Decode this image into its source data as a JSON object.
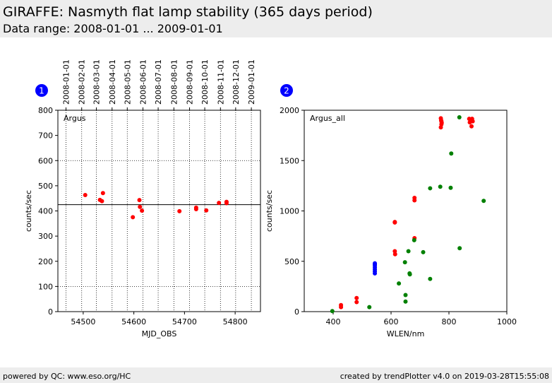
{
  "header": {
    "title": "GIRAFFE: Nasmyth flat lamp stability (365 days period)",
    "subtitle": "Data range: 2008-01-01 ... 2009-01-01"
  },
  "footer": {
    "left": "powered by QC: www.eso.org/HC",
    "right": "created by trendPlotter v4.0 on 2019-03-28T15:55:08"
  },
  "colors": {
    "red": "#ff0000",
    "green": "#008000",
    "blue": "#0000ff",
    "badge": "#0000ff",
    "header_bg": "#ededed"
  },
  "chart_data": [
    {
      "type": "scatter",
      "badge": "1",
      "label": "Argus",
      "xlabel": "MJD_OBS",
      "ylabel": "counts/sec",
      "xlim": [
        54450,
        54850
      ],
      "ylim": [
        0,
        800
      ],
      "xticks": [
        54500,
        54600,
        54700,
        54800
      ],
      "yticks": [
        0,
        100,
        200,
        300,
        400,
        500,
        600,
        700,
        800
      ],
      "reference_line": 425,
      "grid": "dotted",
      "date_axis": {
        "labels": [
          "2008-01-01",
          "2008-02-01",
          "2008-03-01",
          "2008-04-01",
          "2008-05-01",
          "2008-06-01",
          "2008-07-01",
          "2008-08-01",
          "2008-09-01",
          "2008-10-01",
          "2008-11-01",
          "2008-12-01",
          "2009-01-01"
        ],
        "mjd": [
          54466,
          54497,
          54526,
          54557,
          54587,
          54618,
          54648,
          54679,
          54710,
          54740,
          54771,
          54801,
          54832
        ]
      },
      "series": [
        {
          "color": "red",
          "x": [
            54504,
            54533,
            54537,
            54539,
            54598,
            54611,
            54612,
            54616,
            54690,
            54723,
            54723,
            54743,
            54768,
            54783,
            54783
          ],
          "y": [
            463,
            444,
            439,
            471,
            375,
            443,
            416,
            401,
            399,
            413,
            407,
            402,
            432,
            436,
            431
          ]
        }
      ]
    },
    {
      "type": "scatter",
      "badge": "2",
      "label": "Argus_all",
      "xlabel": "WLEN/nm",
      "ylabel": "counts/sec",
      "xlim": [
        300,
        1000
      ],
      "ylim": [
        0,
        2000
      ],
      "xticks": [
        400,
        600,
        800,
        1000
      ],
      "yticks": [
        0,
        500,
        1000,
        1500,
        2000
      ],
      "grid": "off",
      "series": [
        {
          "color": "red",
          "x": [
            427,
            427,
            481,
            481,
            613,
            613,
            613,
            614,
            681,
            681,
            681,
            772,
            773,
            774,
            775,
            772,
            774,
            870,
            872,
            878,
            880,
            882
          ],
          "y": [
            65,
            45,
            135,
            95,
            890,
            885,
            600,
            570,
            1130,
            1105,
            730,
            1920,
            1900,
            1890,
            1875,
            1830,
            1860,
            1915,
            1880,
            1840,
            1915,
            1890
          ]
        },
        {
          "color": "green",
          "x": [
            397,
            525,
            627,
            648,
            650,
            650,
            660,
            664,
            665,
            680,
            711,
            735,
            735,
            770,
            806,
            808,
            836,
            837,
            920
          ],
          "y": [
            5,
            45,
            280,
            490,
            165,
            100,
            600,
            380,
            370,
            710,
            590,
            1225,
            325,
            1240,
            1230,
            1570,
            1930,
            630,
            1100
          ]
        },
        {
          "color": "blue",
          "x": [
            544,
            544,
            544,
            544,
            544,
            544,
            544
          ],
          "y": [
            380,
            400,
            420,
            440,
            460,
            470,
            480
          ]
        }
      ]
    }
  ]
}
